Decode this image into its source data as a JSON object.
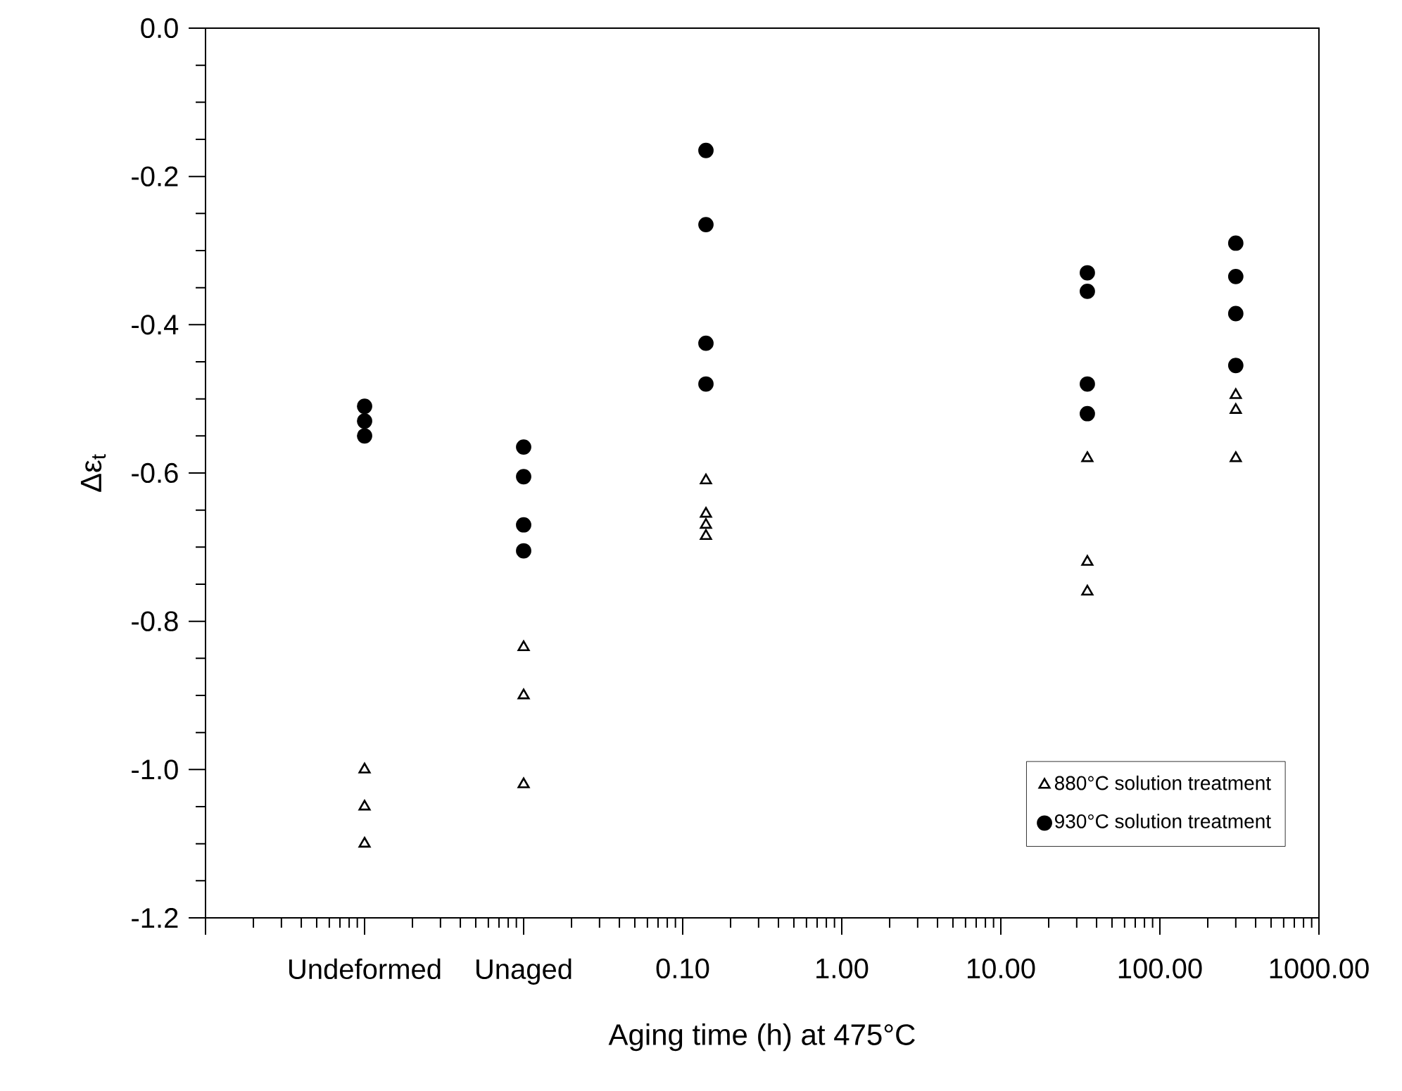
{
  "chart_data": {
    "type": "scatter",
    "xlabel": "Aging time (h) at 475°C",
    "ylabel": "Δε$_{t}$",
    "log": "x",
    "legend": "bottom right",
    "xlim": [
      0.0001,
      1000
    ],
    "ylim": [
      -1.2,
      0.0
    ],
    "xticks": [
      {
        "value": 0.0001,
        "label": null
      },
      {
        "value": 0.001,
        "label": "Undeformed"
      },
      {
        "value": 0.01,
        "label": "Unaged"
      },
      {
        "value": 0.1,
        "label": "0.10"
      },
      {
        "value": 1,
        "label": "1.00"
      },
      {
        "value": 10,
        "label": "10.00"
      },
      {
        "value": 100,
        "label": "100.00"
      },
      {
        "value": 1000,
        "label": "1000.00"
      }
    ],
    "yticks": [
      {
        "value": -1.2,
        "label": "-1.2"
      },
      {
        "value": -1.0,
        "label": "-1.0"
      },
      {
        "value": -0.8,
        "label": "-0.8"
      },
      {
        "value": -0.6,
        "label": "-0.6"
      },
      {
        "value": -0.4,
        "label": "-0.4"
      },
      {
        "value": -0.2,
        "label": "-0.2"
      },
      {
        "value": 0.0,
        "label": "0.0"
      }
    ],
    "series": [
      {
        "name": "880°C solution treatment",
        "color": "#000000",
        "marker": "triangle",
        "x": [
          0.001,
          0.001,
          0.001,
          0.01,
          0.01,
          0.01,
          0.14,
          0.14,
          0.14,
          0.14,
          35,
          35,
          35,
          300,
          300,
          300
        ],
        "values": [
          -1.0,
          -1.05,
          -1.1,
          -0.835,
          -0.9,
          -1.02,
          -0.61,
          -0.655,
          -0.67,
          -0.685,
          -0.58,
          -0.72,
          -0.76,
          -0.495,
          -0.515,
          -0.58
        ]
      },
      {
        "name": "930°C solution treatment",
        "color": "#000000",
        "marker": "circle",
        "x": [
          0.001,
          0.001,
          0.001,
          0.01,
          0.01,
          0.01,
          0.01,
          0.14,
          0.14,
          0.14,
          0.14,
          35,
          35,
          35,
          35,
          300,
          300,
          300,
          300
        ],
        "values": [
          -0.51,
          -0.53,
          -0.55,
          -0.565,
          -0.605,
          -0.67,
          -0.705,
          -0.165,
          -0.265,
          -0.425,
          -0.48,
          -0.33,
          -0.355,
          -0.48,
          -0.52,
          -0.29,
          -0.335,
          -0.385,
          -0.455
        ]
      }
    ]
  }
}
